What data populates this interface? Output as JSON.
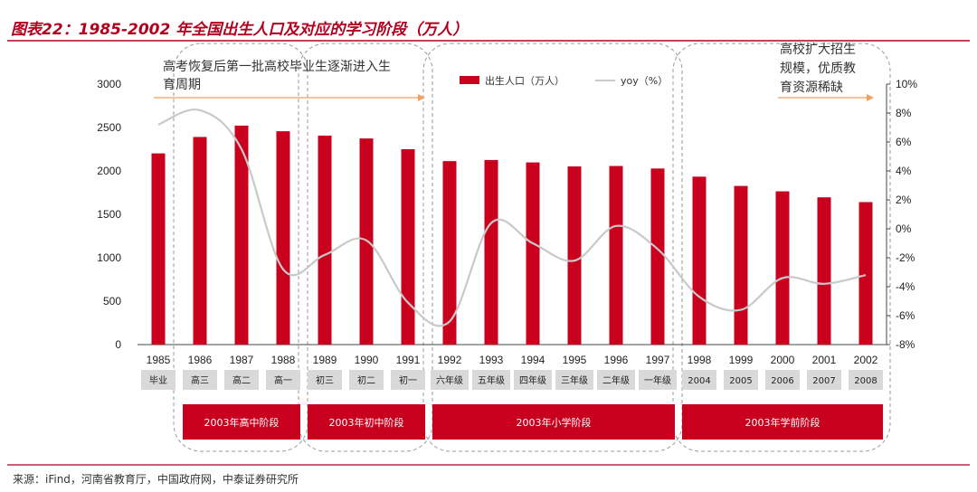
{
  "chart_data": {
    "type": "bar",
    "title": "图表22：1985-2002 年全国出生人口及对应的学习阶段（万人）",
    "categories": [
      "1985",
      "1986",
      "1987",
      "1988",
      "1989",
      "1990",
      "1991",
      "1992",
      "1993",
      "1994",
      "1995",
      "1996",
      "1997",
      "1998",
      "1999",
      "2000",
      "2001",
      "2002"
    ],
    "series": [
      {
        "name": "出生人口（万人）",
        "type": "bar",
        "axis": "left",
        "values": [
          2202,
          2391,
          2522,
          2457,
          2407,
          2374,
          2250,
          2113,
          2126,
          2098,
          2052,
          2057,
          2028,
          1934,
          1827,
          1765,
          1696,
          1641
        ]
      },
      {
        "name": "yoy（%）",
        "type": "line",
        "axis": "right",
        "values": [
          7.2,
          8.2,
          5.5,
          -2.8,
          -1.8,
          -0.8,
          -5.1,
          -6.4,
          0.4,
          -1.0,
          -2.2,
          0.2,
          -1.4,
          -4.7,
          -5.6,
          -3.4,
          -3.8,
          -3.2
        ]
      }
    ],
    "y_left": {
      "min": 0,
      "max": 3000,
      "ticks": [
        0,
        500,
        1000,
        1500,
        2000,
        2500,
        3000
      ]
    },
    "y_right": {
      "min": -8,
      "max": 10,
      "ticks": [
        "10%",
        "8%",
        "6%",
        "4%",
        "2%",
        "0%",
        "-2%",
        "-4%",
        "-6%",
        "-8%"
      ]
    },
    "colors": {
      "bar": "#c8001e",
      "line": "#c9c9c9",
      "title": "#b0001e",
      "arrow": "#f0a060",
      "phase_box": "#c8001e",
      "stage_box": "#d9d9d9"
    },
    "stages": [
      "毕业",
      "高三",
      "高二",
      "高一",
      "初三",
      "初二",
      "初一",
      "六年级",
      "五年级",
      "四年级",
      "三年级",
      "二年级",
      "一年级",
      "2004",
      "2005",
      "2006",
      "2007",
      "2008"
    ],
    "phases": [
      {
        "label": "2003年高中阶段",
        "from": 1,
        "to": 3
      },
      {
        "label": "2003年初中阶段",
        "from": 4,
        "to": 6
      },
      {
        "label": "2003年小学阶段",
        "from": 7,
        "to": 12
      },
      {
        "label": "2003年学前阶段",
        "from": 13,
        "to": 17
      }
    ],
    "annotations": [
      {
        "lines": [
          "高考恢复后第一批高校毕业生逐渐进入生",
          "育周期"
        ]
      },
      {
        "lines": [
          "高校扩大招生",
          "规模，优质教",
          "育资源稀缺"
        ]
      }
    ],
    "legend": {
      "bar": "出生人口（万人）",
      "line": "yoy（%）"
    },
    "source": "来源：iFind，河南省教育厅，中国政府网，中泰证券研究所"
  }
}
